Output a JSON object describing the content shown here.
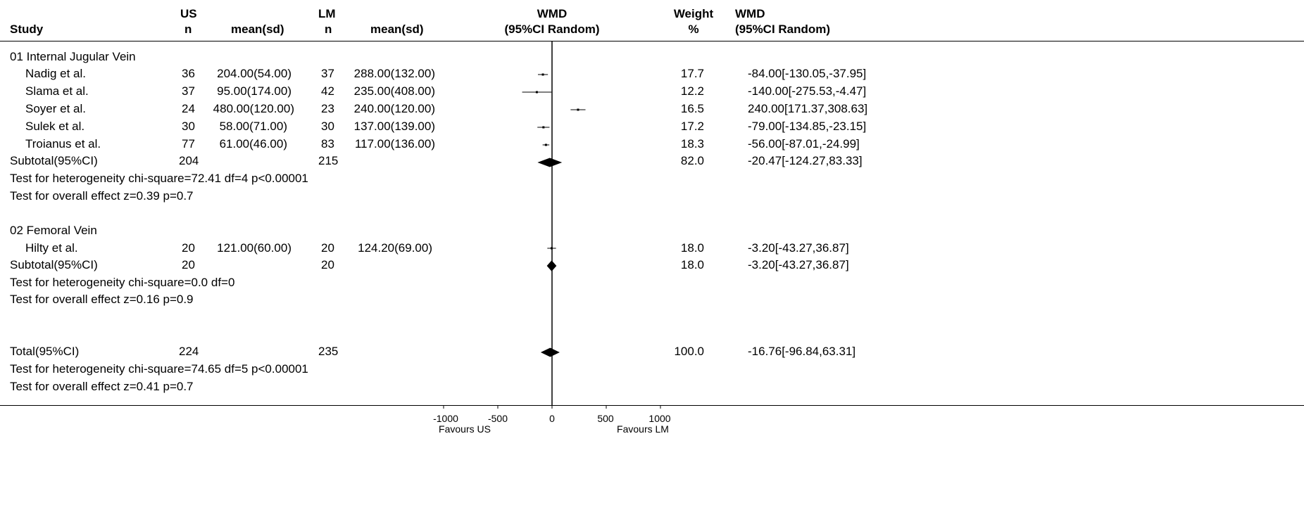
{
  "headers": {
    "study": "Study",
    "us_top": "US",
    "us_n": "n",
    "us_mean": "mean(sd)",
    "lm_top": "LM",
    "lm_n": "n",
    "lm_mean": "mean(sd)",
    "wmd_plot_top": "WMD",
    "wmd_plot_sub": "(95%CI Random)",
    "weight_top": "Weight",
    "weight_sub": "%",
    "wmd_top": "WMD",
    "wmd_sub": "(95%CI Random)"
  },
  "rows": [
    {
      "study": "01 Internal Jugular Vein"
    },
    {
      "study": "Nadig et al.",
      "us_n": "36",
      "us_mean": "204.00(54.00)",
      "lm_n": "37",
      "lm_mean": "288.00(132.00)",
      "weight": "17.7",
      "wmd": "-84.00[-130.05,-37.95]"
    },
    {
      "study": "Slama et al.",
      "us_n": "37",
      "us_mean": "95.00(174.00)",
      "lm_n": "42",
      "lm_mean": "235.00(408.00)",
      "weight": "12.2",
      "wmd": "-140.00[-275.53,-4.47]"
    },
    {
      "study": "Soyer et al.",
      "us_n": "24",
      "us_mean": "480.00(120.00)",
      "lm_n": "23",
      "lm_mean": "240.00(120.00)",
      "weight": "16.5",
      "wmd": "240.00[171.37,308.63]"
    },
    {
      "study": "Sulek et al.",
      "us_n": "30",
      "us_mean": "58.00(71.00)",
      "lm_n": "30",
      "lm_mean": "137.00(139.00)",
      "weight": "17.2",
      "wmd": "-79.00[-134.85,-23.15]"
    },
    {
      "study": "Troianus et al.",
      "us_n": "77",
      "us_mean": "61.00(46.00)",
      "lm_n": "83",
      "lm_mean": "117.00(136.00)",
      "weight": "18.3",
      "wmd": "-56.00[-87.01,-24.99]"
    },
    {
      "study": "Subtotal(95%CI)",
      "us_n": "204",
      "lm_n": "215",
      "weight": "82.0",
      "wmd": "-20.47[-124.27,83.33]"
    },
    {
      "study": "Test for heterogeneity chi-square=72.41  df=4  p<0.00001"
    },
    {
      "study": "Test for overall effect  z=0.39  p=0.7"
    },
    {
      "study": "02 Femoral Vein"
    },
    {
      "study": "Hilty et al.",
      "us_n": "20",
      "us_mean": "121.00(60.00)",
      "lm_n": "20",
      "lm_mean": "124.20(69.00)",
      "weight": "18.0",
      "wmd": "-3.20[-43.27,36.87]"
    },
    {
      "study": "Subtotal(95%CI)",
      "us_n": "20",
      "lm_n": "20",
      "weight": "18.0",
      "wmd": "-3.20[-43.27,36.87]"
    },
    {
      "study": "Test for heterogeneity chi-square=0.0  df=0"
    },
    {
      "study": "Test for overall effect  z=0.16  p=0.9"
    },
    {
      "study": "Total(95%CI)",
      "us_n": "224",
      "lm_n": "235",
      "weight": "100.0",
      "wmd": "-16.76[-96.84,63.31]"
    },
    {
      "study": "Test for heterogeneity chi-square=74.65  df=5  p<0.00001"
    },
    {
      "study": "Test for overall effect  z=0.41  p=0.7"
    }
  ],
  "chart_data": {
    "type": "forest",
    "xlim": [
      -1000,
      1000
    ],
    "xticks": [
      "-1000",
      "-500",
      "0",
      "500",
      "1000"
    ],
    "favours_left": "Favours US",
    "favours_right": "Favours LM",
    "studies": [
      {
        "name": "Nadig et al.",
        "est": -84.0,
        "lo": -130.05,
        "hi": -37.95,
        "weight": 17.7
      },
      {
        "name": "Slama et al.",
        "est": -140.0,
        "lo": -275.53,
        "hi": -4.47,
        "weight": 12.2
      },
      {
        "name": "Soyer et al.",
        "est": 240.0,
        "lo": 171.37,
        "hi": 308.63,
        "weight": 16.5
      },
      {
        "name": "Sulek et al.",
        "est": -79.0,
        "lo": -134.85,
        "hi": -23.15,
        "weight": 17.2
      },
      {
        "name": "Troianus et al.",
        "est": -56.0,
        "lo": -87.01,
        "hi": -24.99,
        "weight": 18.3
      },
      {
        "name": "Hilty et al.",
        "est": -3.2,
        "lo": -43.27,
        "hi": 36.87,
        "weight": 18.0
      }
    ],
    "pooled": [
      {
        "name": "Subtotal 01",
        "est": -20.47,
        "lo": -124.27,
        "hi": 83.33
      },
      {
        "name": "Subtotal 02",
        "est": -3.2,
        "lo": -43.27,
        "hi": 36.87
      },
      {
        "name": "Total",
        "est": -16.76,
        "lo": -96.84,
        "hi": 63.31
      }
    ]
  }
}
